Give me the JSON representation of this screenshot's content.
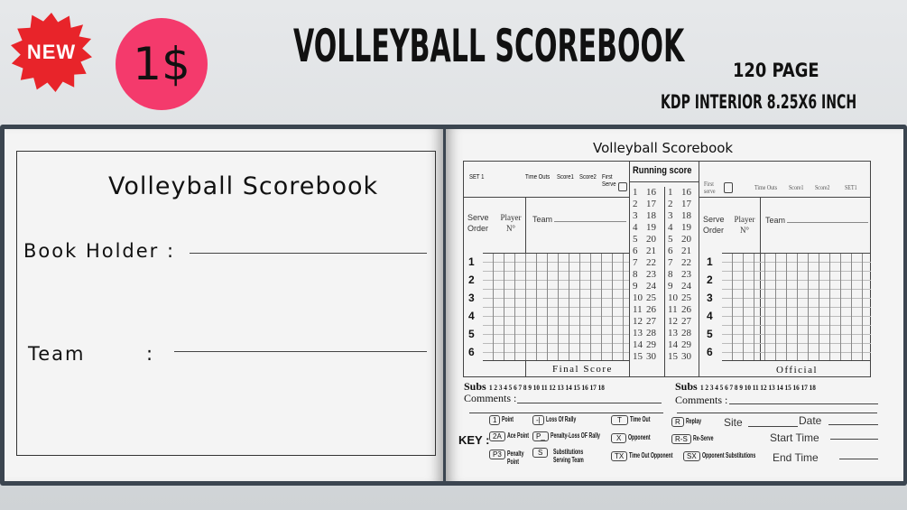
{
  "promo": {
    "new_badge": "NEW",
    "price": "1$",
    "title": "VOLLEYBALL SCOREBOOK",
    "pages": "120 PAGE",
    "spec": "KDP INTERIOR 8.25X6 INCH",
    "colors": {
      "new_badge": "#e8242a",
      "price_circle": "#f43a6c"
    }
  },
  "left_page": {
    "title": "Volleyball Scorebook",
    "book_holder": "Book Holder :",
    "team": "Team",
    "team_colon": ":"
  },
  "right_page": {
    "title": "Volleyball Scorebook",
    "left_table": {
      "set": "SET 1",
      "time_outs": "Time Outs",
      "score1": "Score1",
      "score2": "Score2",
      "first_serve": "First Serve",
      "serve_order": "Serve Order",
      "player": "Player N°",
      "team": "Team",
      "rows": [
        "1",
        "2",
        "3",
        "4",
        "5",
        "6"
      ],
      "footer": "Final Score"
    },
    "running_score": {
      "title": "Running score",
      "col_a": [
        "1",
        "2",
        "3",
        "4",
        "5",
        "6",
        "7",
        "8",
        "9",
        "10",
        "11",
        "12",
        "13",
        "14",
        "15"
      ],
      "col_b": [
        "16",
        "17",
        "18",
        "19",
        "20",
        "21",
        "22",
        "23",
        "24",
        "25",
        "26",
        "27",
        "28",
        "29",
        "30"
      ]
    },
    "right_table": {
      "first_serve": "First serve",
      "time_outs": "Time Outs",
      "score1": "Score1",
      "score2": "Score2",
      "set": "SET1",
      "serve_order": "Serve Order",
      "player": "Player N°",
      "team": "Team",
      "rows": [
        "1",
        "2",
        "3",
        "4",
        "5",
        "6"
      ],
      "footer": "Official"
    },
    "subs_label": "Subs",
    "subs_numbers": "1 2 3 4 5 6 7 8 9 10 11 12 13 14 15 16 17 18",
    "comments": "Comments :",
    "key": {
      "label": "KEY :",
      "items": [
        {
          "code": "1",
          "text": "Point"
        },
        {
          "code": "-|",
          "text": "Loss Of Rally"
        },
        {
          "code": "T",
          "text": "Time Out"
        },
        {
          "code": "R",
          "text": "Replay"
        },
        {
          "code": "2A",
          "text": "Ace Point"
        },
        {
          "code": "P_",
          "text": "Penalty-Loss OF Rally"
        },
        {
          "code": "X",
          "text": "Opponent"
        },
        {
          "code": "R-S",
          "text": "Re-Serve"
        },
        {
          "code": "P3",
          "text": "Penalty Point"
        },
        {
          "code": "S",
          "text": "Substitutions Serving Team"
        },
        {
          "code": "TX",
          "text": "Time Out Opponent"
        },
        {
          "code": "SX",
          "text": "Opponent Substitutions"
        }
      ]
    },
    "site": "Site",
    "date": "Date",
    "start_time": "Start Time",
    "end_time": "End Time"
  }
}
